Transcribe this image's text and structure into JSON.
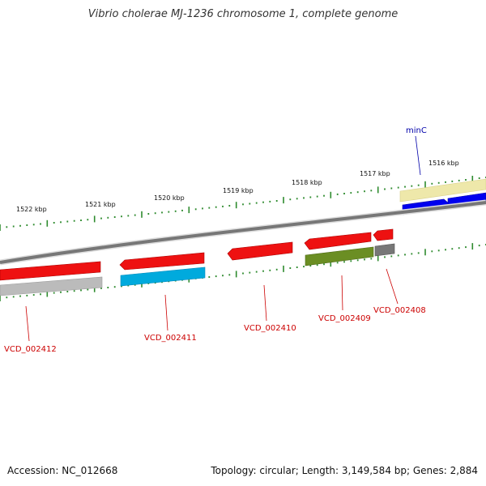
{
  "title": "Vibrio cholerae MJ-1236 chromosome 1, complete genome",
  "footer": {
    "accession": "Accession: NC_012668",
    "topology": "Topology: circular; Length: 3,149,584 bp; Genes: 2,884"
  },
  "kbp_labels": [
    "1522 kbp",
    "1521 kbp",
    "1520 kbp",
    "1519 kbp",
    "1518 kbp",
    "1517 kbp",
    "1516 kbp"
  ],
  "genes": [
    {
      "name": "minC",
      "color": "#0000aa"
    },
    {
      "name": "VCD_002408",
      "color": "#cc0000"
    },
    {
      "name": "VCD_002409",
      "color": "#cc0000"
    },
    {
      "name": "VCD_002410",
      "color": "#cc0000"
    },
    {
      "name": "VCD_002411",
      "color": "#cc0000"
    },
    {
      "name": "VCD_002412",
      "color": "#cc0000"
    }
  ],
  "colors": {
    "red": "#ee1111",
    "blue": "#0000ee",
    "cyan": "#00aadd",
    "olive": "#6b8e23",
    "gray": "#777777",
    "lightgray": "#bbbbbb",
    "paleyellow": "#eee8aa",
    "tick": "#2e8b2e",
    "backbone": "#888888"
  }
}
